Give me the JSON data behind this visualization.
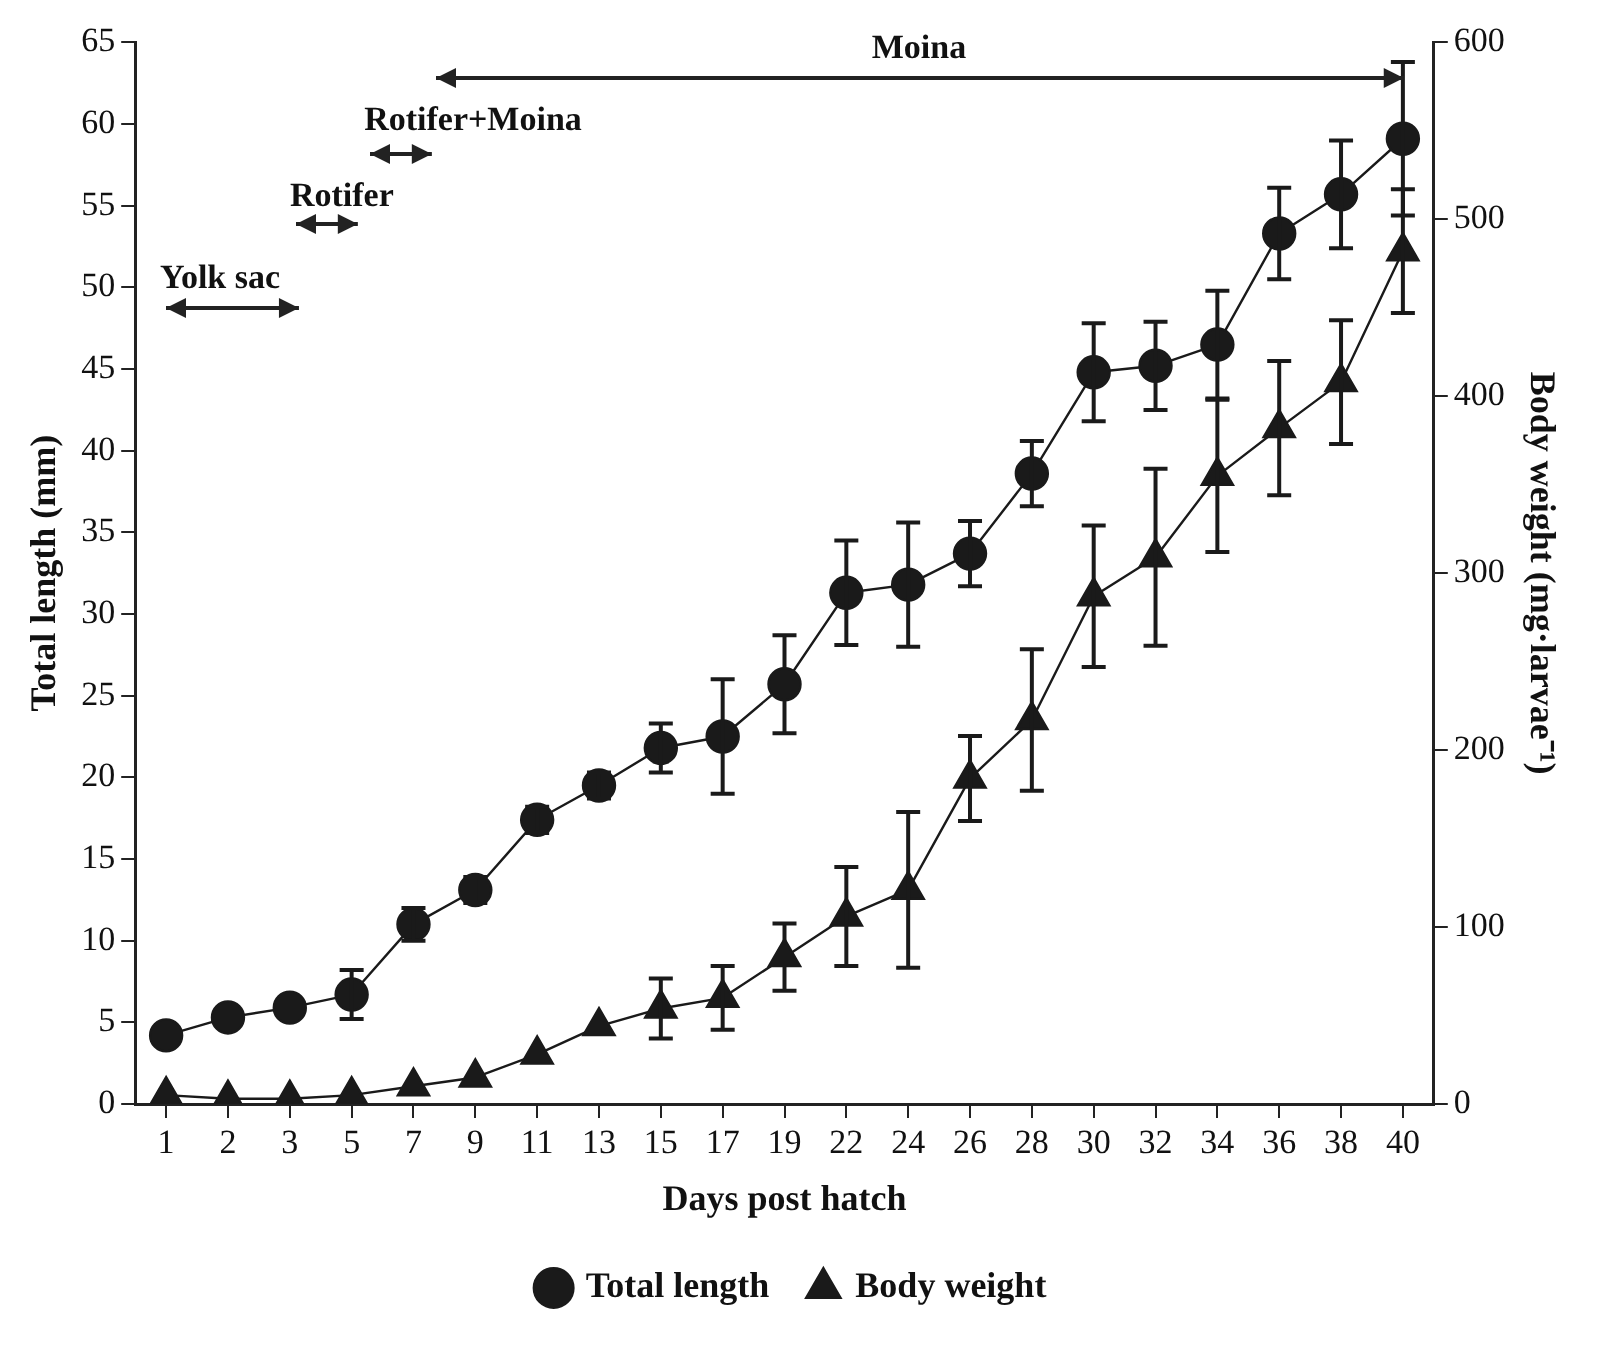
{
  "chart_data": {
    "type": "line",
    "xlabel": "Days post hatch",
    "ylabel": "Total length (mm)",
    "y2label": "Body weight (mg·larvae⁻¹)",
    "categories": [
      "1",
      "2",
      "3",
      "5",
      "7",
      "9",
      "11",
      "13",
      "15",
      "17",
      "19",
      "22",
      "24",
      "26",
      "28",
      "30",
      "32",
      "34",
      "36",
      "38",
      "40"
    ],
    "series": [
      {
        "name": "Total length",
        "color": "#1a1a1a",
        "marker": "circle",
        "values": [
          4.2,
          5.3,
          5.9,
          6.7,
          11.0,
          13.1,
          17.4,
          19.5,
          21.8,
          22.5,
          25.7,
          31.3,
          31.8,
          33.7,
          38.6,
          44.8,
          45.2,
          46.5,
          53.3,
          55.7,
          59.1
        ],
        "errors": [
          null,
          null,
          null,
          1.5,
          1.0,
          0.8,
          0.8,
          0.8,
          1.5,
          3.5,
          3.0,
          3.2,
          3.8,
          2.0,
          2.0,
          3.0,
          2.7,
          3.3,
          2.8,
          3.3,
          4.7
        ]
      },
      {
        "name": "Body weight",
        "color": "#1a1a1a",
        "marker": "triangle",
        "axis": "y2",
        "values": [
          5,
          3,
          3,
          5,
          10,
          15,
          28,
          44,
          54,
          60,
          83,
          106,
          121,
          184,
          217,
          287,
          309,
          355,
          382,
          408,
          482
        ],
        "errors": [
          null,
          null,
          null,
          null,
          null,
          null,
          null,
          null,
          17,
          18,
          19,
          28,
          44,
          24,
          40,
          40,
          50,
          43,
          38,
          35,
          35
        ]
      }
    ],
    "ylim": [
      0,
      65
    ],
    "yticks": [
      0,
      5,
      10,
      15,
      20,
      25,
      30,
      35,
      40,
      45,
      50,
      55,
      60,
      65
    ],
    "y2lim": [
      0,
      600
    ],
    "y2ticks": [
      0,
      100,
      200,
      300,
      400,
      500,
      600
    ],
    "annotations": [
      "Yolk sac",
      "Rotifer",
      "Rotifer+Moina",
      "Moina"
    ],
    "legend": "bottom",
    "grid": false
  }
}
